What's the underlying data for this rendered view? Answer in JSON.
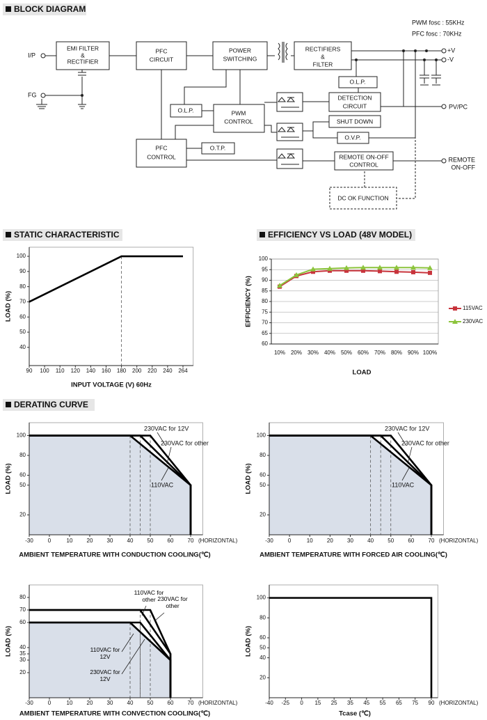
{
  "sections": [
    "BLOCK DIAGRAM",
    "STATIC CHARACTERISTIC",
    "EFFICIENCY VS LOAD (48V MODEL)",
    "DERATING CURVE"
  ],
  "block_diagram": {
    "notes": [
      "PWM fosc : 55KHz",
      "PFC fosc : 70KHz"
    ],
    "terminals": [
      "I/P",
      "FG",
      "+V",
      "-V",
      "PV/PC",
      "REMOTE",
      "ON-OFF"
    ],
    "nodes": [
      {
        "label": [
          "EMI FILTER",
          "&",
          "RECTIFIER"
        ]
      },
      {
        "label": [
          "PFC",
          "CIRCUIT"
        ]
      },
      {
        "label": [
          "POWER",
          "SWITCHING"
        ]
      },
      {
        "label": [
          "RECTIFIERS",
          "&",
          "FILTER"
        ]
      },
      {
        "label": [
          "O.L.P."
        ]
      },
      {
        "label": [
          "DETECTION",
          "CIRCUIT"
        ]
      },
      {
        "label": [
          "O.L.P."
        ]
      },
      {
        "label": [
          "PWM",
          "CONTROL"
        ]
      },
      {
        "label": [
          "SHUT DOWN"
        ]
      },
      {
        "label": [
          "O.V.P."
        ]
      },
      {
        "label": [
          "PFC",
          "CONTROL"
        ]
      },
      {
        "label": [
          "O.T.P."
        ]
      },
      {
        "label": [
          "REMOTE ON-OFF",
          "CONTROL"
        ]
      },
      {
        "label": [
          "DC OK FUNCTION"
        ]
      }
    ]
  },
  "chart_data": [
    {
      "type": "line",
      "xlabel": "INPUT VOLTAGE (V) 60Hz",
      "ylabel": "LOAD (%)",
      "xlim": [
        90,
        280
      ],
      "xticks": [
        90,
        100,
        110,
        120,
        140,
        160,
        180,
        200,
        220,
        240,
        264
      ],
      "ylim": [
        28,
        106
      ],
      "yticks": [
        40,
        50,
        60,
        70,
        80,
        90,
        100
      ],
      "drop_lines": true,
      "series": [
        {
          "color": "#000000",
          "x": [
            90,
            180,
            264
          ],
          "values": [
            70,
            100,
            100
          ]
        }
      ]
    },
    {
      "type": "line",
      "xlabel": "LOAD",
      "ylabel": "EFFICIENCY (%)",
      "categories": [
        "10%",
        "20%",
        "30%",
        "40%",
        "50%",
        "60%",
        "70%",
        "80%",
        "90%",
        "100%"
      ],
      "ylim": [
        60,
        100
      ],
      "yticks": [
        60,
        65,
        70,
        75,
        80,
        85,
        90,
        95,
        100
      ],
      "grid": true,
      "legend": "right",
      "series": [
        {
          "name": "115VAC",
          "color": "#c8343c",
          "marker": "square",
          "values": [
            87,
            92,
            94,
            94.5,
            94.5,
            94.5,
            94.3,
            94,
            93.8,
            93.5
          ]
        },
        {
          "name": "230VAC",
          "color": "#8cc43c",
          "marker": "triangle",
          "values": [
            87.5,
            92.5,
            95.2,
            95.5,
            95.8,
            96,
            96,
            96,
            96,
            95.8
          ]
        }
      ]
    },
    {
      "type": "line",
      "xlabel": "AMBIENT TEMPERATURE WITH  CONDUCTION COOLING(℃)",
      "ylabel": "LOAD (%)",
      "x_note": "(HORIZONTAL)",
      "xlim": [
        -30,
        76
      ],
      "xticks": [
        -30,
        0,
        10,
        20,
        30,
        40,
        50,
        60,
        70
      ],
      "ylim": [
        0,
        113
      ],
      "yticks": [
        20,
        50,
        60,
        80,
        100
      ],
      "fill": "#d9dfe9",
      "drop_lines": true,
      "series": [
        {
          "name": "110VAC",
          "color": "#000000",
          "x": [
            -30,
            40,
            70,
            70
          ],
          "values": [
            100,
            100,
            50,
            0
          ]
        },
        {
          "name": "230VAC for other",
          "color": "#000000",
          "x": [
            -30,
            45,
            70,
            70
          ],
          "values": [
            100,
            100,
            50,
            0
          ]
        },
        {
          "name": "230VAC for 12V",
          "color": "#000000",
          "x": [
            -30,
            50,
            70,
            70
          ],
          "values": [
            100,
            100,
            50,
            0
          ]
        }
      ]
    },
    {
      "type": "line",
      "xlabel": "AMBIENT TEMPERATURE WITH  FORCED AIR COOLING(℃)",
      "ylabel": "LOAD (%)",
      "x_note": "(HORIZONTAL)",
      "xlim": [
        -30,
        76
      ],
      "xticks": [
        -30,
        0,
        10,
        20,
        30,
        40,
        50,
        60,
        70
      ],
      "ylim": [
        0,
        113
      ],
      "yticks": [
        20,
        50,
        60,
        80,
        100
      ],
      "fill": "#d9dfe9",
      "drop_lines": true,
      "series": [
        {
          "name": "110VAC",
          "color": "#000000",
          "x": [
            -30,
            40,
            70,
            70
          ],
          "values": [
            100,
            100,
            50,
            0
          ]
        },
        {
          "name": "230VAC for other",
          "color": "#000000",
          "x": [
            -30,
            45,
            70,
            70
          ],
          "values": [
            100,
            100,
            50,
            0
          ]
        },
        {
          "name": "230VAC for 12V",
          "color": "#000000",
          "x": [
            -30,
            50,
            70,
            70
          ],
          "values": [
            100,
            100,
            50,
            0
          ]
        }
      ]
    },
    {
      "type": "line",
      "xlabel": "AMBIENT TEMPERATURE WITH  CONVECTION COOLING(℃)",
      "ylabel": "LOAD (%)",
      "x_note": "(HORIZONTAL)",
      "xlim": [
        -30,
        76
      ],
      "xticks": [
        -30,
        0,
        10,
        20,
        30,
        40,
        50,
        60,
        70
      ],
      "ylim": [
        0,
        90
      ],
      "yticks": [
        20,
        30,
        35,
        40,
        60,
        70,
        80
      ],
      "fill": "#d9dfe9",
      "drop_lines": true,
      "series": [
        {
          "name": "110VAC for 12V",
          "color": "#000000",
          "x": [
            -30,
            40,
            60,
            60
          ],
          "values": [
            60,
            60,
            30,
            0
          ]
        },
        {
          "name": "230VAC for 12V",
          "color": "#000000",
          "x": [
            -30,
            45,
            60,
            60
          ],
          "values": [
            60,
            60,
            30,
            0
          ]
        },
        {
          "name": "110VAC for other",
          "color": "#000000",
          "x": [
            -30,
            45,
            60,
            60
          ],
          "values": [
            70,
            70,
            35,
            0
          ]
        },
        {
          "name": "230VAC for other",
          "color": "#000000",
          "x": [
            -30,
            50,
            60,
            60
          ],
          "values": [
            70,
            70,
            35,
            0
          ]
        }
      ]
    },
    {
      "type": "line",
      "xlabel": "Tcase (℃)",
      "ylabel": "LOAD (%)",
      "x_note": "(HORIZONTAL)",
      "xlim": [
        -40,
        96
      ],
      "xticks": [
        -40,
        -25,
        0,
        15,
        25,
        35,
        45,
        55,
        65,
        75,
        90
      ],
      "ylim": [
        0,
        113
      ],
      "yticks": [
        20,
        40,
        50,
        60,
        80,
        100
      ],
      "series": [
        {
          "color": "#000000",
          "x": [
            -40,
            90,
            90
          ],
          "values": [
            100,
            100,
            0
          ]
        }
      ]
    }
  ]
}
